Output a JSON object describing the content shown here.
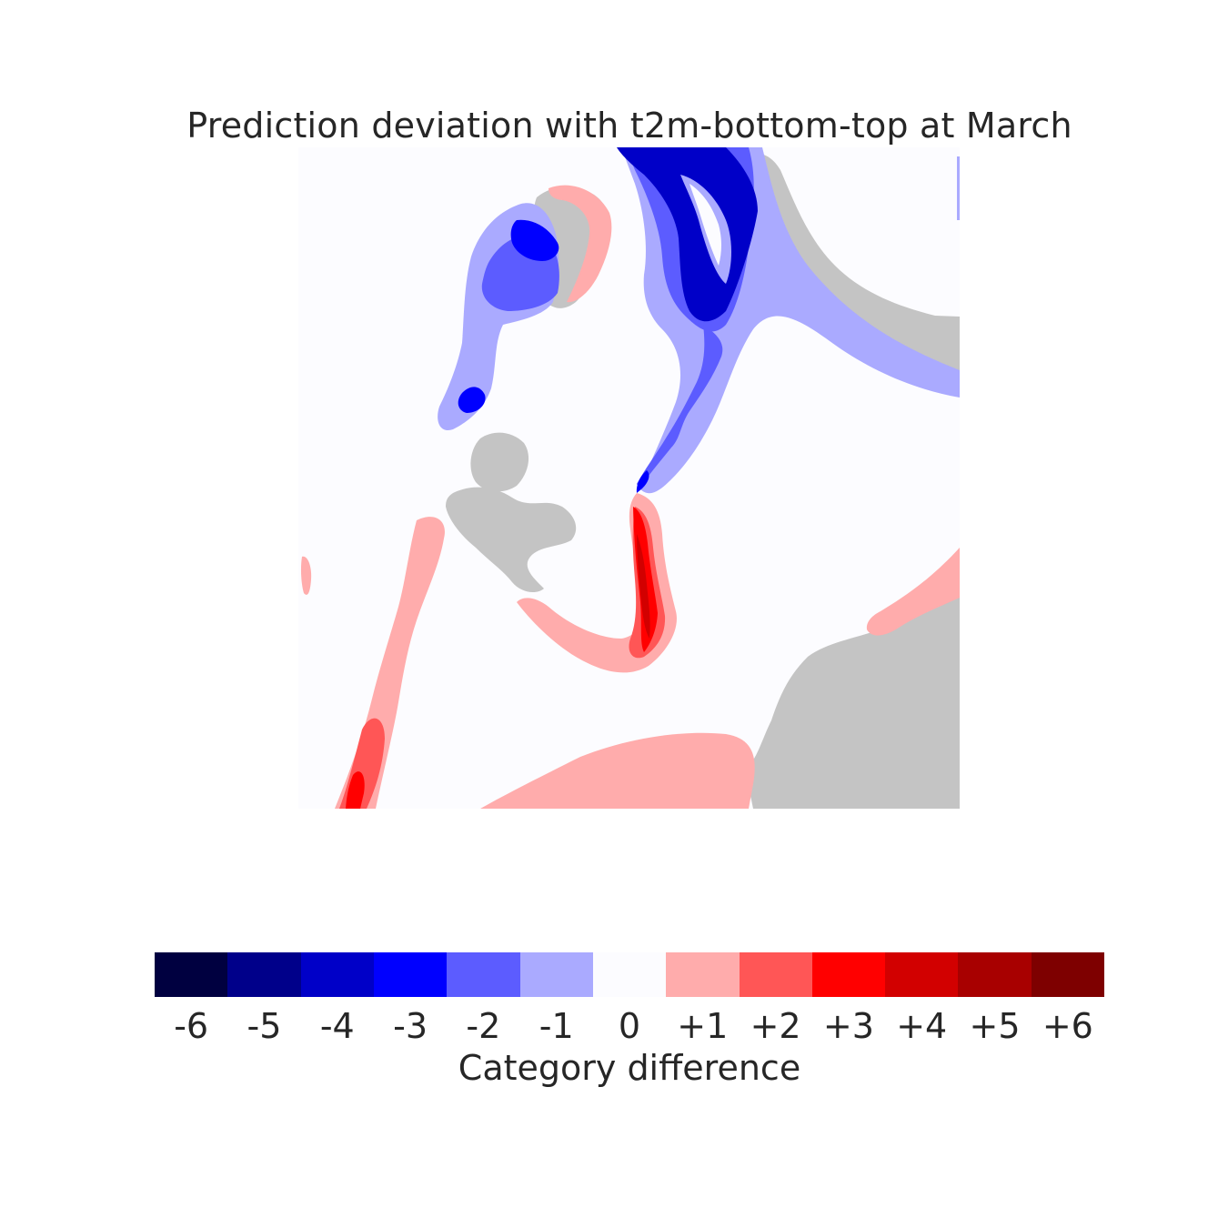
{
  "title": "Prediction deviation with t2m-bottom-top at March",
  "colors": {
    "background": "#fcfcff",
    "land": "#c4c4c4",
    "minus6": "#000040",
    "minus5": "#00008a",
    "minus4": "#0000c8",
    "minus3": "#0000ff",
    "minus2": "#5c5cff",
    "minus1": "#aaaaff",
    "zero": "#fcfcff",
    "plus1": "#ffacac",
    "plus2": "#ff5656",
    "plus3": "#ff0000",
    "plus4": "#d20000",
    "plus5": "#a80000",
    "plus6": "#7e0000"
  },
  "colorbar": {
    "label": "Category difference",
    "ticks": [
      "-6",
      "-5",
      "-4",
      "-3",
      "-2",
      "-1",
      "0",
      "+1",
      "+2",
      "+3",
      "+4",
      "+5",
      "+6"
    ],
    "swatch_colors": [
      "#000040",
      "#00008a",
      "#0000c8",
      "#0000ff",
      "#5c5cff",
      "#aaaaff",
      "#fcfcff",
      "#ffacac",
      "#ff5656",
      "#ff0000",
      "#d20000",
      "#a80000",
      "#7e0000"
    ]
  }
}
